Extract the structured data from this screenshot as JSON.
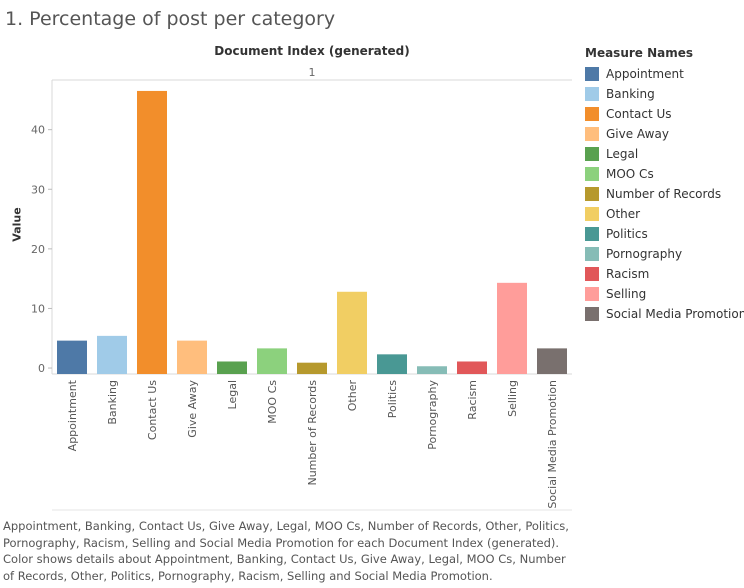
{
  "title": "1. Percentage of post per category",
  "caption": "Appointment, Banking, Contact Us, Give Away, Legal, MOO Cs, Number of Records, Other, Politics, Pornography, Racism, Selling and Social Media Promotion for each Document Index (generated). Color shows details about Appointment, Banking, Contact Us, Give Away, Legal, MOO Cs, Number of Records, Other, Politics, Pornography, Racism, Selling and Social Media Promotion.",
  "legend": {
    "title": "Measure Names",
    "items": [
      {
        "label": "Appointment",
        "color": "#4e79a7"
      },
      {
        "label": "Banking",
        "color": "#a0cbe8"
      },
      {
        "label": "Contact Us",
        "color": "#f28e2b"
      },
      {
        "label": "Give Away",
        "color": "#ffbe7d"
      },
      {
        "label": "Legal",
        "color": "#59a14f"
      },
      {
        "label": "MOO Cs",
        "color": "#8cd17d"
      },
      {
        "label": "Number of Records",
        "color": "#b6992d"
      },
      {
        "label": "Other",
        "color": "#f1ce63"
      },
      {
        "label": "Politics",
        "color": "#499894"
      },
      {
        "label": "Pornography",
        "color": "#86bcb6"
      },
      {
        "label": "Racism",
        "color": "#e15759"
      },
      {
        "label": "Selling",
        "color": "#ff9d9a"
      },
      {
        "label": "Social Media Promotion",
        "color": "#79706e"
      }
    ]
  },
  "chart_data": {
    "type": "bar",
    "column_header": "Document Index (generated)",
    "column_value": "1",
    "ylabel": "Value",
    "xlabel": "",
    "ylim": [
      -1,
      48
    ],
    "yticks": [
      0,
      10,
      20,
      30,
      40
    ],
    "grid": false,
    "legend_position": "right",
    "categories": [
      "Appointment",
      "Banking",
      "Contact Us",
      "Give Away",
      "Legal",
      "MOO Cs",
      "Number of Records",
      "Other",
      "Politics",
      "Pornography",
      "Racism",
      "Selling",
      "Social Media Promotion"
    ],
    "values": [
      4.6,
      5.4,
      46.5,
      4.6,
      1.1,
      3.3,
      0.9,
      12.8,
      2.3,
      0.3,
      1.1,
      14.3,
      3.3
    ],
    "colors": [
      "#4e79a7",
      "#a0cbe8",
      "#f28e2b",
      "#ffbe7d",
      "#59a14f",
      "#8cd17d",
      "#b6992d",
      "#f1ce63",
      "#499894",
      "#86bcb6",
      "#e15759",
      "#ff9d9a",
      "#79706e"
    ]
  }
}
